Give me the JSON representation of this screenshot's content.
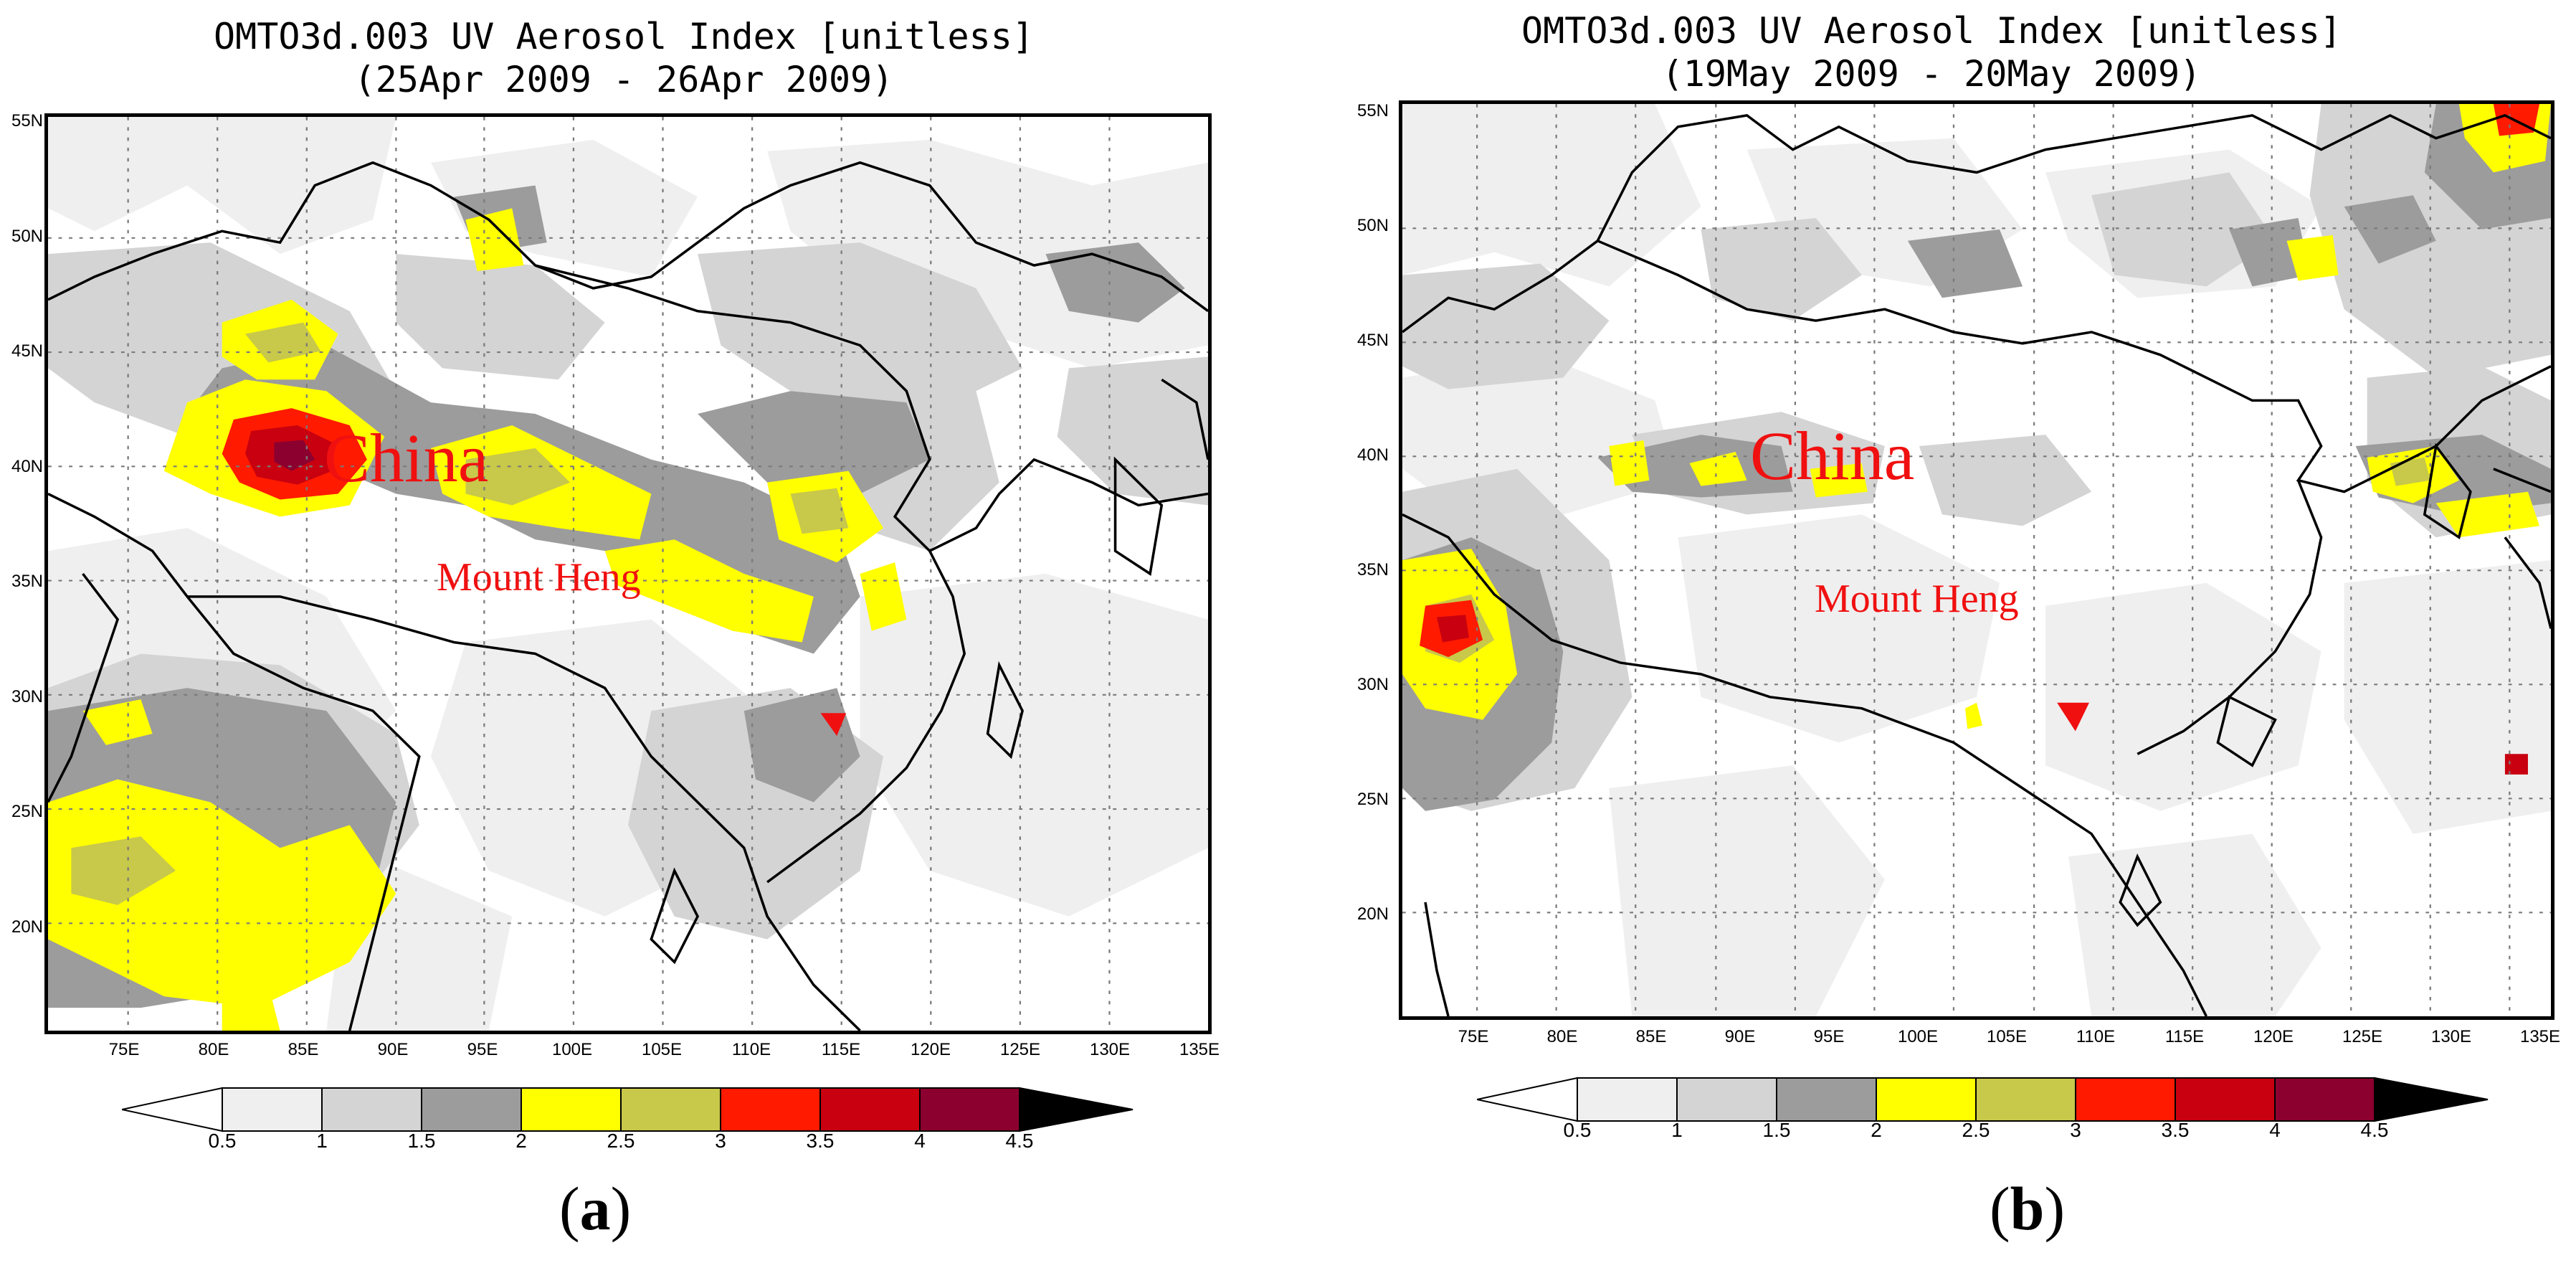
{
  "panels": {
    "a": {
      "title": "OMTO3d.003 UV Aerosol Index [unitless]",
      "subtitle": "(25Apr 2009 - 26Apr 2009)",
      "label_letter": "a",
      "map_label_country": "China",
      "map_label_site": "Mount Heng"
    },
    "b": {
      "title": "OMTO3d.003 UV Aerosol Index [unitless]",
      "subtitle": "(19May 2009 - 20May 2009)",
      "label_letter": "b",
      "map_label_country": "China",
      "map_label_site": "Mount Heng"
    }
  },
  "axes": {
    "lat_ticks": [
      "20N",
      "25N",
      "30N",
      "35N",
      "40N",
      "45N",
      "50N",
      "55N"
    ],
    "lon_ticks": [
      "75E",
      "80E",
      "85E",
      "90E",
      "95E",
      "100E",
      "105E",
      "110E",
      "115E",
      "120E",
      "125E",
      "130E",
      "135E"
    ],
    "lat_range": [
      15.5,
      55.5
    ],
    "lon_range": [
      70.5,
      135.5
    ]
  },
  "colorbar": {
    "labels": [
      "0.5",
      "1",
      "1.5",
      "2",
      "2.5",
      "3",
      "3.5",
      "4",
      "4.5"
    ],
    "colors": [
      "#ffffff",
      "#efefef",
      "#d4d4d4",
      "#9c9c9c",
      "#ffff00",
      "#c8c84a",
      "#ff1a00",
      "#c80010",
      "#8c0030",
      "#000000"
    ]
  },
  "colors": {
    "label_red": "#f01010",
    "coastline": "#000000"
  }
}
